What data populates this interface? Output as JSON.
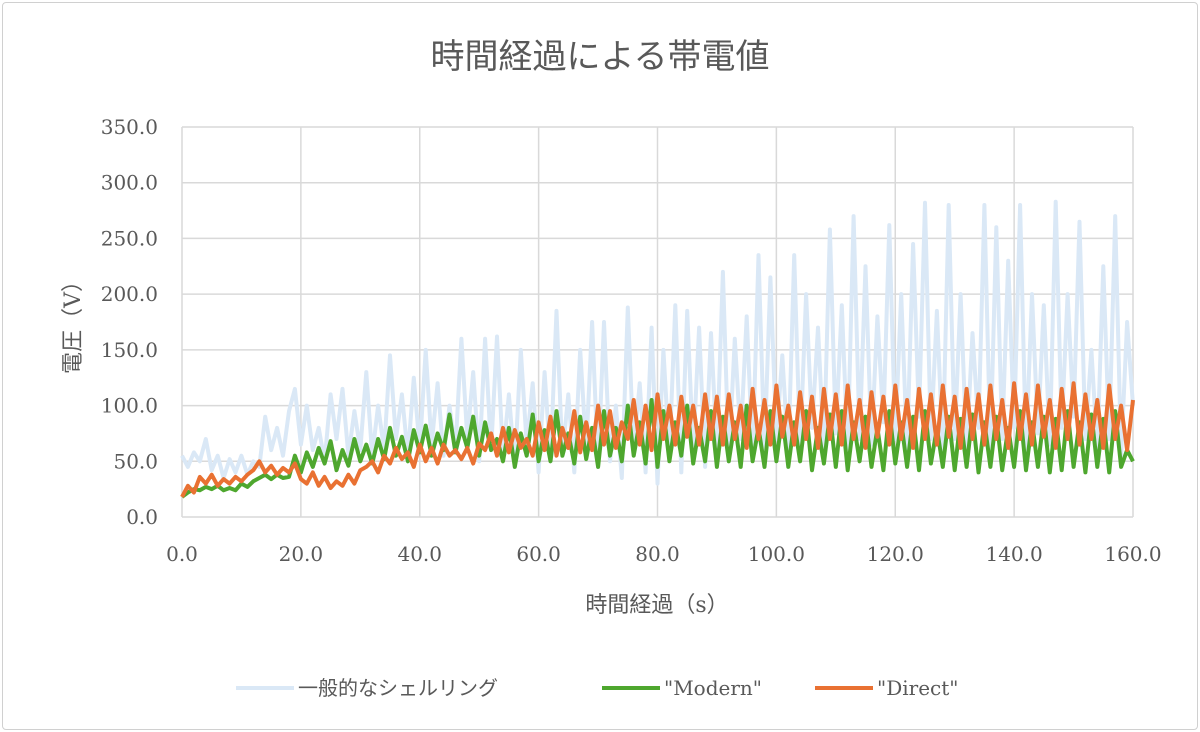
{
  "chart_data": {
    "type": "line",
    "title": "時間経過による帯電値",
    "xlabel": "時間経過（s）",
    "ylabel": "電圧（V）",
    "xlim": [
      0,
      160
    ],
    "ylim": [
      0,
      350
    ],
    "xticks": [
      "0.0",
      "20.0",
      "40.0",
      "60.0",
      "80.0",
      "100.0",
      "120.0",
      "140.0",
      "160.0"
    ],
    "yticks": [
      "0.0",
      "50.0",
      "100.0",
      "150.0",
      "200.0",
      "250.0",
      "300.0",
      "350.0"
    ],
    "grid": true,
    "legend_position": "bottom",
    "x_start": 0,
    "x_step": 1,
    "series": [
      {
        "name": "一般的なシェルリング",
        "color": "#dae8f6",
        "values": [
          55,
          45,
          58,
          50,
          70,
          42,
          55,
          35,
          52,
          40,
          55,
          38,
          50,
          45,
          90,
          60,
          80,
          55,
          95,
          115,
          65,
          100,
          60,
          80,
          50,
          110,
          70,
          115,
          55,
          95,
          60,
          130,
          55,
          100,
          60,
          145,
          70,
          110,
          55,
          125,
          60,
          150,
          65,
          120,
          55,
          100,
          60,
          160,
          70,
          130,
          50,
          160,
          60,
          162,
          55,
          110,
          45,
          150,
          65,
          120,
          40,
          130,
          50,
          185,
          55,
          110,
          40,
          150,
          60,
          175,
          45,
          175,
          50,
          100,
          35,
          188,
          60,
          120,
          40,
          170,
          30,
          150,
          55,
          190,
          40,
          185,
          60,
          170,
          45,
          165,
          60,
          220,
          50,
          160,
          70,
          180,
          55,
          235,
          60,
          215,
          70,
          145,
          55,
          235,
          60,
          200,
          80,
          170,
          60,
          258,
          75,
          190,
          60,
          270,
          70,
          225,
          65,
          180,
          85,
          262,
          70,
          200,
          60,
          245,
          90,
          282,
          70,
          185,
          60,
          280,
          70,
          200,
          60,
          165,
          80,
          280,
          60,
          260,
          70,
          230,
          80,
          280,
          60,
          200,
          75,
          190,
          65,
          283,
          80,
          200,
          90,
          265,
          70,
          150,
          60,
          225,
          70,
          270,
          55,
          175,
          100
        ]
      },
      {
        "name": "\"Modern\"",
        "color": "#4ea72e",
        "values": [
          18,
          22,
          25,
          24,
          27,
          25,
          28,
          24,
          26,
          24,
          30,
          27,
          32,
          35,
          38,
          34,
          38,
          35,
          36,
          55,
          40,
          58,
          45,
          62,
          48,
          68,
          42,
          60,
          46,
          70,
          50,
          65,
          48,
          70,
          52,
          80,
          55,
          72,
          50,
          78,
          58,
          82,
          55,
          75,
          60,
          92,
          58,
          80,
          62,
          90,
          55,
          85,
          60,
          70,
          50,
          80,
          45,
          75,
          55,
          92,
          50,
          78,
          50,
          95,
          55,
          75,
          48,
          90,
          52,
          80,
          45,
          95,
          55,
          80,
          50,
          100,
          55,
          85,
          48,
          105,
          45,
          95,
          50,
          85,
          55,
          100,
          48,
          80,
          50,
          95,
          45,
          90,
          50,
          85,
          45,
          100,
          50,
          80,
          45,
          95,
          50,
          90,
          45,
          85,
          50,
          95,
          42,
          80,
          48,
          92,
          45,
          95,
          42,
          85,
          50,
          90,
          45,
          80,
          42,
          95,
          48,
          85,
          45,
          90,
          42,
          95,
          48,
          80,
          45,
          90,
          42,
          88,
          45,
          92,
          40,
          85,
          45,
          90,
          42,
          80,
          45,
          95,
          42,
          85,
          45,
          90,
          40,
          88,
          42,
          95,
          45,
          85,
          40,
          92,
          45,
          88,
          40,
          95,
          45,
          60,
          50
        ]
      },
      {
        "name": "\"Direct\"",
        "color": "#e97132",
        "values": [
          18,
          28,
          22,
          36,
          30,
          38,
          28,
          34,
          30,
          36,
          32,
          38,
          42,
          50,
          40,
          46,
          38,
          44,
          40,
          48,
          34,
          30,
          40,
          28,
          36,
          26,
          32,
          28,
          38,
          30,
          42,
          45,
          50,
          40,
          55,
          48,
          62,
          52,
          58,
          45,
          65,
          50,
          62,
          48,
          65,
          55,
          60,
          52,
          62,
          48,
          66,
          60,
          75,
          55,
          80,
          58,
          78,
          62,
          70,
          55,
          85,
          60,
          90,
          55,
          80,
          62,
          95,
          58,
          85,
          60,
          100,
          65,
          95,
          62,
          85,
          70,
          105,
          65,
          100,
          60,
          110,
          70,
          100,
          65,
          108,
          72,
          100,
          65,
          110,
          70,
          108,
          65,
          110,
          70,
          100,
          62,
          115,
          70,
          105,
          65,
          118,
          72,
          100,
          65,
          112,
          70,
          108,
          62,
          115,
          70,
          110,
          65,
          118,
          70,
          105,
          62,
          112,
          72,
          108,
          65,
          118,
          70,
          105,
          62,
          115,
          70,
          110,
          65,
          118,
          72,
          108,
          62,
          115,
          70,
          110,
          65,
          118,
          70,
          105,
          62,
          120,
          70,
          110,
          65,
          118,
          72,
          105,
          62,
          115,
          70,
          120,
          65,
          110,
          70,
          105,
          62,
          118,
          70,
          100,
          60,
          105
        ]
      }
    ]
  }
}
